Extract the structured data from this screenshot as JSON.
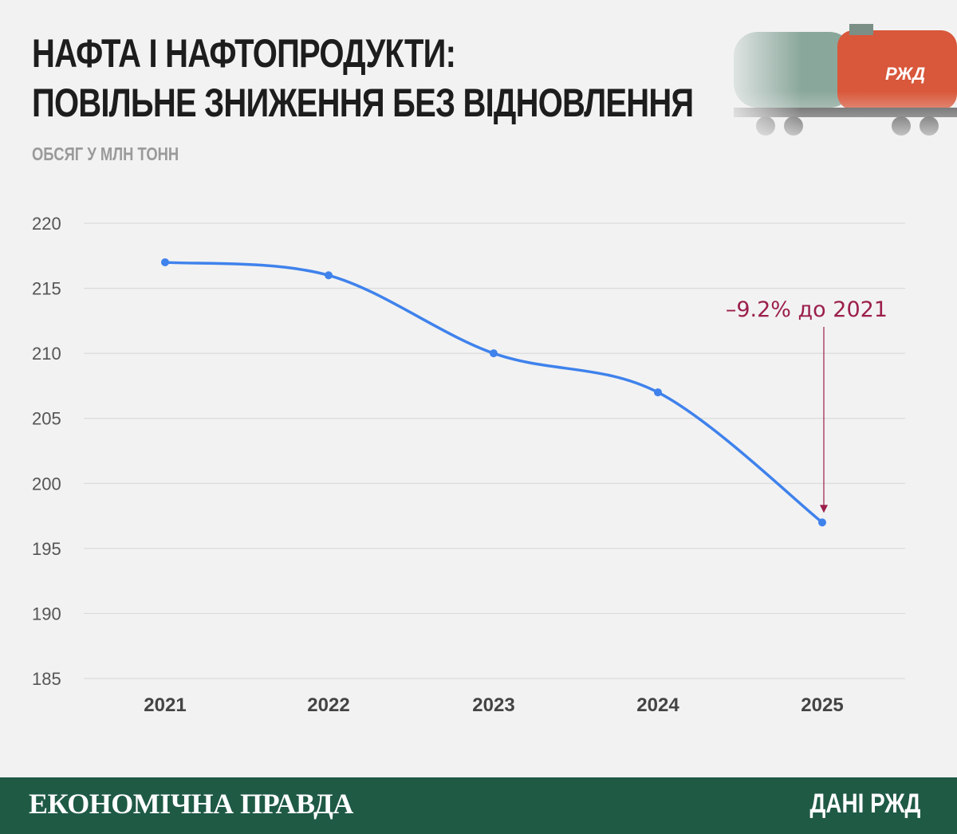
{
  "header": {
    "title_line1": "НАФТА І НАФТОПРОДУКТИ:",
    "title_line2": "ПОВІЛЬНЕ ЗНИЖЕННЯ БЕЗ ВІДНОВЛЕННЯ",
    "subtitle": "ОБСЯГ У МЛН ТОНН"
  },
  "chart_data": {
    "type": "line",
    "title": "НАФТА І НАФТОПРОДУКТИ: ПОВІЛЬНЕ ЗНИЖЕННЯ БЕЗ ВІДНОВЛЕННЯ",
    "ylabel": "ОБСЯГ У МЛН ТОНН",
    "xlabel": "",
    "categories": [
      "2021",
      "2022",
      "2023",
      "2024",
      "2025"
    ],
    "series": [
      {
        "values": [
          217,
          216,
          210,
          207,
          197
        ]
      }
    ],
    "ylim": [
      185,
      220
    ],
    "yticks": [
      220,
      215,
      210,
      205,
      200,
      195,
      190,
      185
    ],
    "grid": true,
    "line_color": "#3f82ec",
    "annotation": {
      "text": "–9.2% до 2021",
      "target_category": "2025",
      "color": "#9b1f4b"
    }
  },
  "footer": {
    "brand": "ЕКОНОМІЧНА ПРАВДА",
    "source": "ДАНІ РЖД",
    "background": "#1f5a45"
  }
}
